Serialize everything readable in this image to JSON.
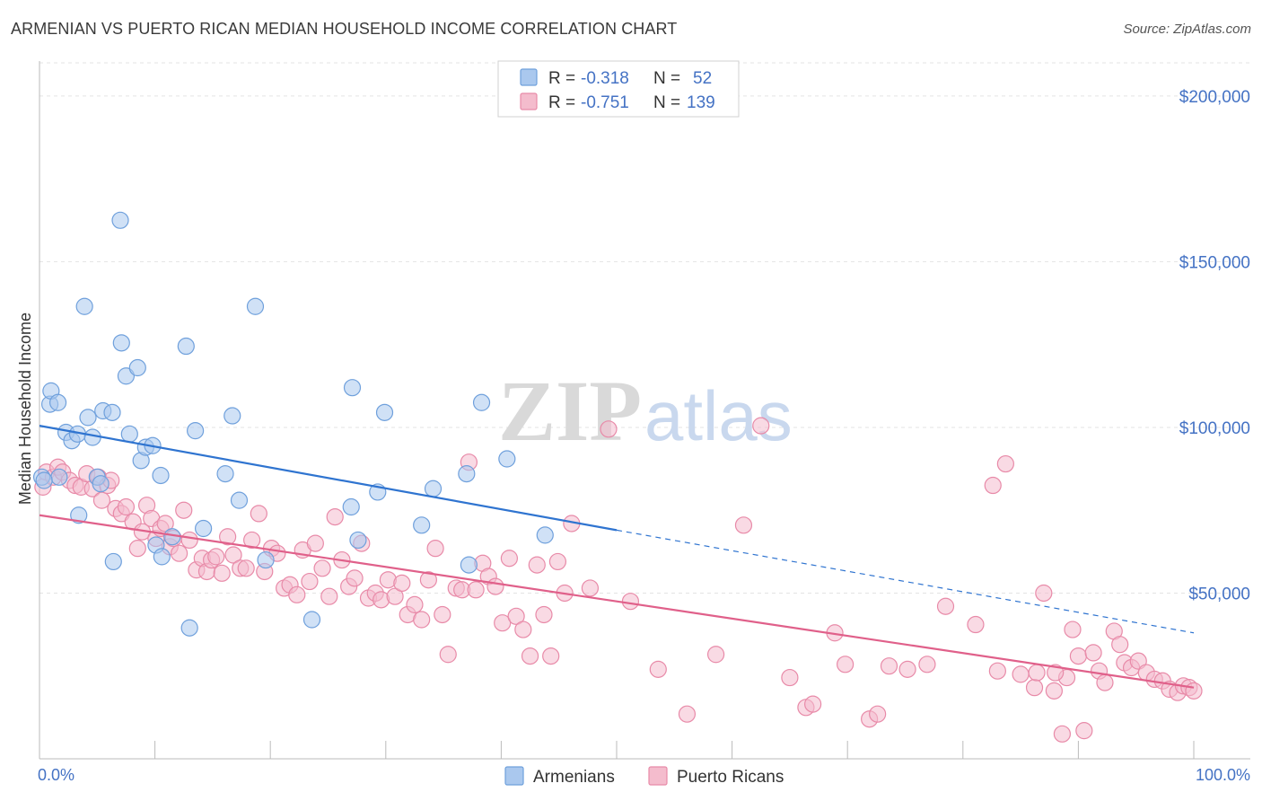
{
  "header": {
    "title": "ARMENIAN VS PUERTO RICAN MEDIAN HOUSEHOLD INCOME CORRELATION CHART",
    "source": "Source: ZipAtlas.com"
  },
  "watermark": {
    "zip": "ZIP",
    "atlas": "atlas"
  },
  "colors": {
    "armenians": "#6fa0dc",
    "armenians_fill": "#aac8ee",
    "armenians_line": "#2f74d0",
    "puerto_ricans": "#e88aa8",
    "puerto_ricans_fill": "#f4bccd",
    "puerto_ricans_line": "#e0608a",
    "axis_text": "#4472c4",
    "grid": "#e3e3e3"
  },
  "legend": {
    "rows": [
      {
        "r_label": "R = ",
        "r_value": "-0.318",
        "n_label": "N = ",
        "n_value": "52"
      },
      {
        "r_label": "R = ",
        "r_value": "-0.751",
        "n_label": "N = ",
        "n_value": "139"
      }
    ]
  },
  "chart_data": {
    "type": "scatter",
    "title": "ARMENIAN VS PUERTO RICAN MEDIAN HOUSEHOLD INCOME CORRELATION CHART",
    "xlabel": "",
    "ylabel": "Median Household Income",
    "xlim": [
      0,
      100
    ],
    "ylim": [
      0,
      210000
    ],
    "x_tick_labels": [
      "0.0%",
      "100.0%"
    ],
    "y_ticks": [
      50000,
      100000,
      150000,
      200000
    ],
    "y_tick_labels": [
      "$50,000",
      "$100,000",
      "$150,000",
      "$200,000"
    ],
    "grid": true,
    "legend_position": "bottom",
    "series": [
      {
        "name": "Armenians",
        "r": -0.318,
        "n": 52,
        "trend": {
          "x": [
            0,
            50
          ],
          "y": [
            100500,
            69000
          ],
          "dashed_to": [
            100,
            38000
          ]
        },
        "points": [
          [
            0.2,
            85000
          ],
          [
            0.9,
            107000
          ],
          [
            1.0,
            111000
          ],
          [
            1.6,
            107500
          ],
          [
            1.7,
            85000
          ],
          [
            2.3,
            98500
          ],
          [
            2.8,
            96000
          ],
          [
            3.3,
            98000
          ],
          [
            3.4,
            73500
          ],
          [
            3.9,
            136500
          ],
          [
            4.2,
            103000
          ],
          [
            4.6,
            97000
          ],
          [
            5.0,
            85000
          ],
          [
            5.3,
            83000
          ],
          [
            5.5,
            105000
          ],
          [
            6.3,
            104500
          ],
          [
            6.4,
            59500
          ],
          [
            7.0,
            162500
          ],
          [
            7.1,
            125500
          ],
          [
            7.5,
            115500
          ],
          [
            7.8,
            98000
          ],
          [
            8.5,
            118000
          ],
          [
            8.8,
            90000
          ],
          [
            9.2,
            94000
          ],
          [
            9.8,
            94500
          ],
          [
            10.1,
            64500
          ],
          [
            10.5,
            85500
          ],
          [
            10.6,
            61000
          ],
          [
            11.5,
            67000
          ],
          [
            12.7,
            124500
          ],
          [
            13.0,
            39500
          ],
          [
            13.5,
            99000
          ],
          [
            14.2,
            69500
          ],
          [
            16.1,
            86000
          ],
          [
            16.7,
            103500
          ],
          [
            17.3,
            78000
          ],
          [
            18.7,
            136500
          ],
          [
            19.6,
            60000
          ],
          [
            23.6,
            42000
          ],
          [
            27.0,
            76000
          ],
          [
            27.1,
            112000
          ],
          [
            27.6,
            66000
          ],
          [
            29.3,
            80500
          ],
          [
            29.9,
            104500
          ],
          [
            33.1,
            70500
          ],
          [
            34.1,
            81500
          ],
          [
            37.0,
            86000
          ],
          [
            37.2,
            58500
          ],
          [
            38.3,
            107500
          ],
          [
            40.5,
            90500
          ],
          [
            43.8,
            67500
          ],
          [
            0.4,
            84000
          ]
        ]
      },
      {
        "name": "Puerto Ricans",
        "r": -0.751,
        "n": 139,
        "trend": {
          "x": [
            0,
            100
          ],
          "y": [
            73500,
            21500
          ]
        },
        "points": [
          [
            0.3,
            82000
          ],
          [
            0.6,
            86500
          ],
          [
            1.2,
            85000
          ],
          [
            1.6,
            88000
          ],
          [
            2.0,
            86500
          ],
          [
            2.6,
            84000
          ],
          [
            3.1,
            82500
          ],
          [
            3.6,
            82000
          ],
          [
            4.1,
            86000
          ],
          [
            4.6,
            81500
          ],
          [
            5.1,
            85000
          ],
          [
            5.4,
            78000
          ],
          [
            5.9,
            82500
          ],
          [
            6.2,
            84000
          ],
          [
            6.6,
            75500
          ],
          [
            7.1,
            74000
          ],
          [
            7.5,
            76000
          ],
          [
            8.1,
            71500
          ],
          [
            8.5,
            63500
          ],
          [
            8.9,
            68500
          ],
          [
            9.3,
            76500
          ],
          [
            9.7,
            72500
          ],
          [
            10.1,
            66500
          ],
          [
            10.5,
            69500
          ],
          [
            10.9,
            71000
          ],
          [
            11.3,
            64000
          ],
          [
            11.6,
            66500
          ],
          [
            12.1,
            62000
          ],
          [
            12.5,
            75000
          ],
          [
            13.0,
            66000
          ],
          [
            13.6,
            57000
          ],
          [
            14.1,
            60500
          ],
          [
            14.5,
            56500
          ],
          [
            14.9,
            60000
          ],
          [
            15.3,
            61000
          ],
          [
            15.8,
            56000
          ],
          [
            16.3,
            67000
          ],
          [
            16.8,
            61500
          ],
          [
            17.4,
            57500
          ],
          [
            17.9,
            57500
          ],
          [
            18.4,
            66000
          ],
          [
            19.0,
            74000
          ],
          [
            19.5,
            56500
          ],
          [
            20.1,
            63500
          ],
          [
            20.6,
            62000
          ],
          [
            21.2,
            51500
          ],
          [
            21.7,
            52500
          ],
          [
            22.3,
            49500
          ],
          [
            22.8,
            63000
          ],
          [
            23.4,
            53500
          ],
          [
            23.9,
            65000
          ],
          [
            24.5,
            57500
          ],
          [
            25.1,
            49000
          ],
          [
            25.6,
            73000
          ],
          [
            26.2,
            60000
          ],
          [
            26.8,
            52000
          ],
          [
            27.3,
            54500
          ],
          [
            27.9,
            65000
          ],
          [
            28.5,
            48500
          ],
          [
            29.1,
            50000
          ],
          [
            29.6,
            48000
          ],
          [
            30.2,
            54000
          ],
          [
            30.8,
            49000
          ],
          [
            31.4,
            53000
          ],
          [
            31.9,
            43500
          ],
          [
            32.5,
            46500
          ],
          [
            33.1,
            42000
          ],
          [
            33.7,
            54000
          ],
          [
            34.3,
            63500
          ],
          [
            34.9,
            43500
          ],
          [
            35.4,
            31500
          ],
          [
            36.1,
            51500
          ],
          [
            36.6,
            51000
          ],
          [
            37.2,
            89500
          ],
          [
            37.8,
            51000
          ],
          [
            38.4,
            59000
          ],
          [
            38.9,
            55000
          ],
          [
            39.5,
            52000
          ],
          [
            40.1,
            41000
          ],
          [
            40.7,
            60500
          ],
          [
            41.3,
            43000
          ],
          [
            41.9,
            39000
          ],
          [
            42.5,
            31000
          ],
          [
            43.1,
            58500
          ],
          [
            43.7,
            43500
          ],
          [
            44.3,
            31000
          ],
          [
            44.9,
            59500
          ],
          [
            45.5,
            50000
          ],
          [
            46.1,
            71000
          ],
          [
            47.7,
            51500
          ],
          [
            49.3,
            99500
          ],
          [
            51.2,
            47500
          ],
          [
            53.6,
            27000
          ],
          [
            56.1,
            13500
          ],
          [
            58.6,
            31500
          ],
          [
            61.0,
            70500
          ],
          [
            62.5,
            100500
          ],
          [
            65.0,
            24500
          ],
          [
            66.4,
            15500
          ],
          [
            67.0,
            16500
          ],
          [
            68.9,
            38000
          ],
          [
            69.8,
            28500
          ],
          [
            71.9,
            12000
          ],
          [
            72.6,
            13500
          ],
          [
            73.6,
            28000
          ],
          [
            75.2,
            27000
          ],
          [
            76.9,
            28500
          ],
          [
            78.5,
            46000
          ],
          [
            81.1,
            40500
          ],
          [
            82.6,
            82500
          ],
          [
            83.0,
            26500
          ],
          [
            83.7,
            89000
          ],
          [
            85.0,
            25500
          ],
          [
            86.2,
            21500
          ],
          [
            87.0,
            50000
          ],
          [
            87.9,
            20500
          ],
          [
            88.6,
            7500
          ],
          [
            89.0,
            24500
          ],
          [
            89.5,
            39000
          ],
          [
            90.0,
            31000
          ],
          [
            90.5,
            8500
          ],
          [
            91.3,
            32000
          ],
          [
            91.8,
            26500
          ],
          [
            92.3,
            23000
          ],
          [
            93.1,
            38500
          ],
          [
            93.6,
            34500
          ],
          [
            94.0,
            29000
          ],
          [
            94.6,
            27500
          ],
          [
            95.2,
            29500
          ],
          [
            95.9,
            26000
          ],
          [
            96.6,
            24000
          ],
          [
            97.3,
            23500
          ],
          [
            97.9,
            21000
          ],
          [
            98.6,
            20000
          ],
          [
            99.1,
            22000
          ],
          [
            99.6,
            21500
          ],
          [
            100.0,
            20500
          ],
          [
            86.4,
            26000
          ],
          [
            88.0,
            26000
          ]
        ]
      }
    ]
  },
  "bottom_legend": {
    "items": [
      {
        "label": "Armenians"
      },
      {
        "label": "Puerto Ricans"
      }
    ]
  }
}
